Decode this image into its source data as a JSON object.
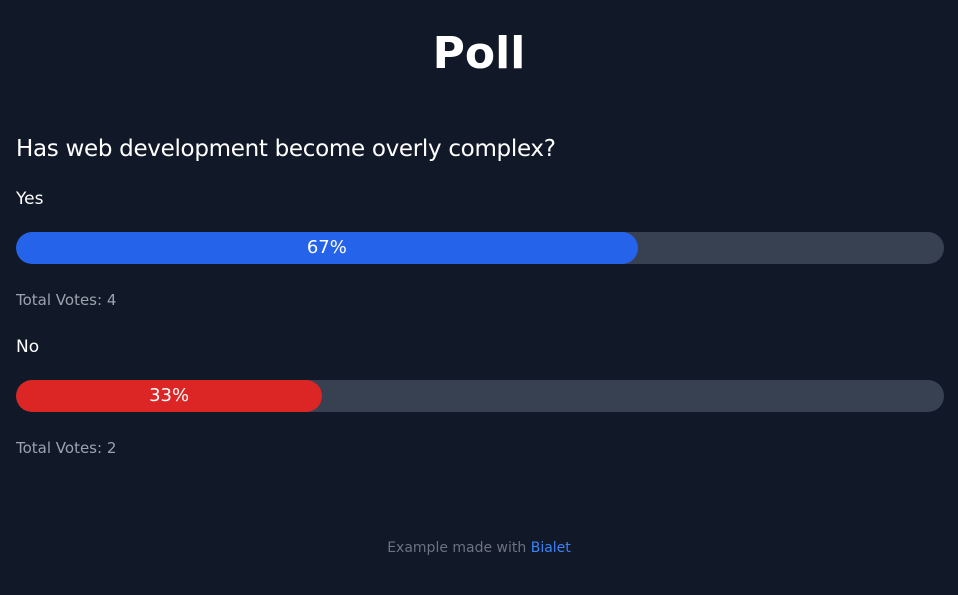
{
  "page": {
    "title": "Poll"
  },
  "poll": {
    "question": "Has web development become overly complex?",
    "options": [
      {
        "label": "Yes",
        "percent": 67,
        "percent_label": "67%",
        "votes_text": "Total Votes: 4",
        "color": "#2563eb"
      },
      {
        "label": "No",
        "percent": 33,
        "percent_label": "33%",
        "votes_text": "Total Votes: 2",
        "color": "#dc2626"
      }
    ]
  },
  "footer": {
    "text": "Example made with ",
    "link_label": "Bialet"
  },
  "colors": {
    "background": "#111827",
    "track": "#374151",
    "muted_text": "#9ca3af",
    "link": "#3b82f6"
  }
}
